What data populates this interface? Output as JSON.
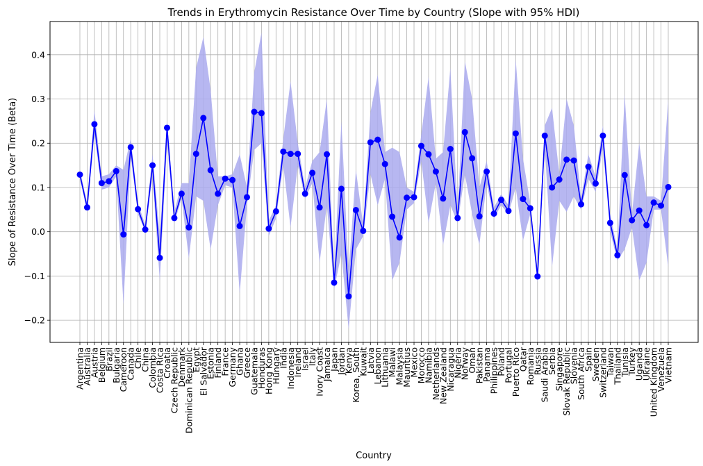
{
  "chart_data": {
    "type": "line",
    "title": "Trends in Erythromycin Resistance Over Time by Country (Slope with 95% HDI)",
    "xlabel": "Country",
    "ylabel": "Slope of Resistance Over Time (Beta)",
    "ylim": [
      -0.25,
      0.475
    ],
    "yticks": [
      -0.2,
      -0.1,
      0.0,
      0.1,
      0.2,
      0.3,
      0.4
    ],
    "ytick_labels": [
      "−0.2",
      "−0.1",
      "0.0",
      "0.1",
      "0.2",
      "0.3",
      "0.4"
    ],
    "grid": true,
    "line_color": "#0000ff",
    "band_color": "#aaaaee",
    "categories": [
      "Argentina",
      "Australia",
      "Austria",
      "Belgium",
      "Brazil",
      "Bulgaria",
      "Cameroon",
      "Canada",
      "Chile",
      "China",
      "Colombia",
      "Costa Rica",
      "Croatia",
      "Czech Republic",
      "Denmark",
      "Dominican Republic",
      "Egypt",
      "El Salvador",
      "Estonia",
      "Finland",
      "France",
      "Germany",
      "Ghana",
      "Greece",
      "Guatemala",
      "Honduras",
      "Hong Kong",
      "Hungary",
      "India",
      "Indonesia",
      "Ireland",
      "Israel",
      "Italy",
      "Ivory Coast",
      "Jamaica",
      "Japan",
      "Jordan",
      "Kenya",
      "Korea, South",
      "Kuwait",
      "Latvia",
      "Lebanon",
      "Lithuania",
      "Malawi",
      "Malaysia",
      "Mauritius",
      "Mexico",
      "Morocco",
      "Namibia",
      "Netherlands",
      "New Zealand",
      "Nicaragua",
      "Nigeria",
      "Norway",
      "Oman",
      "Pakistan",
      "Panama",
      "Philippines",
      "Poland",
      "Portugal",
      "Puerto Rico",
      "Qatar",
      "Romania",
      "Russia",
      "Saudi Arabia",
      "Serbia",
      "Singapore",
      "Slovak Republic",
      "Slovenia",
      "South Africa",
      "Spain",
      "Sweden",
      "Switzerland",
      "Taiwan",
      "Thailand",
      "Tunisia",
      "Turkey",
      "Uganda",
      "Ukraine",
      "United Kingdom",
      "Venezuela",
      "Vietnam"
    ],
    "series": [
      {
        "values": [
          0.129,
          0.055,
          0.243,
          0.11,
          0.114,
          0.137,
          -0.006,
          0.191,
          0.051,
          0.005,
          0.15,
          -0.059,
          0.235,
          0.031,
          0.086,
          0.01,
          0.176,
          0.257,
          0.139,
          0.086,
          0.12,
          0.117,
          0.013,
          0.078,
          0.271,
          0.268,
          0.007,
          0.046,
          0.181,
          0.176,
          0.176,
          0.086,
          0.133,
          0.055,
          0.175,
          -0.115,
          0.097,
          -0.146,
          0.049,
          0.002,
          0.202,
          0.208,
          0.153,
          0.034,
          -0.013,
          0.077,
          0.078,
          0.194,
          0.175,
          0.136,
          0.075,
          0.187,
          0.031,
          0.225,
          0.166,
          0.035,
          0.136,
          0.041,
          0.072,
          0.047,
          0.222,
          0.074,
          0.053,
          -0.101,
          0.217,
          0.1,
          0.118,
          0.163,
          0.161,
          0.062,
          0.147,
          0.109,
          0.217,
          0.02,
          -0.053,
          0.128,
          0.026,
          0.048,
          0.015,
          0.066,
          0.059,
          0.101
        ],
        "hdi_lower": [
          0.12,
          0.045,
          0.22,
          0.095,
          0.1,
          0.125,
          -0.165,
          0.17,
          0.04,
          0.0,
          0.125,
          -0.11,
          0.2,
          0.02,
          0.075,
          -0.06,
          0.08,
          0.07,
          -0.04,
          0.06,
          0.105,
          0.1,
          -0.14,
          0.06,
          0.185,
          0.2,
          -0.01,
          0.03,
          0.15,
          0.01,
          0.15,
          0.075,
          0.11,
          -0.07,
          0.06,
          -0.13,
          -0.05,
          -0.22,
          -0.04,
          -0.01,
          0.13,
          0.06,
          0.12,
          -0.11,
          -0.07,
          0.05,
          0.065,
          0.16,
          0.02,
          0.11,
          -0.03,
          0.06,
          0.02,
          0.13,
          0.04,
          -0.03,
          0.11,
          0.03,
          0.06,
          0.04,
          0.1,
          -0.02,
          0.04,
          -0.115,
          0.19,
          -0.08,
          0.07,
          0.045,
          0.08,
          0.05,
          0.12,
          0.09,
          0.19,
          0.0,
          -0.065,
          -0.04,
          0.01,
          -0.11,
          -0.07,
          0.05,
          0.05,
          -0.08
        ],
        "hdi_upper": [
          0.14,
          0.065,
          0.275,
          0.125,
          0.13,
          0.15,
          0.14,
          0.21,
          0.065,
          0.015,
          0.175,
          -0.01,
          0.25,
          0.045,
          0.11,
          0.11,
          0.37,
          0.44,
          0.32,
          0.125,
          0.125,
          0.13,
          0.175,
          0.1,
          0.36,
          0.45,
          0.025,
          0.06,
          0.21,
          0.34,
          0.2,
          0.1,
          0.16,
          0.18,
          0.3,
          -0.1,
          0.25,
          -0.09,
          0.14,
          0.015,
          0.27,
          0.355,
          0.18,
          0.19,
          0.18,
          0.1,
          0.09,
          0.22,
          0.35,
          0.165,
          0.18,
          0.37,
          0.045,
          0.385,
          0.3,
          0.1,
          0.16,
          0.055,
          0.085,
          0.06,
          0.39,
          0.165,
          0.065,
          -0.085,
          0.24,
          0.28,
          0.13,
          0.3,
          0.24,
          0.075,
          0.175,
          0.125,
          0.24,
          0.04,
          -0.04,
          0.31,
          0.04,
          0.2,
          0.08,
          0.08,
          0.07,
          0.3
        ]
      }
    ]
  }
}
